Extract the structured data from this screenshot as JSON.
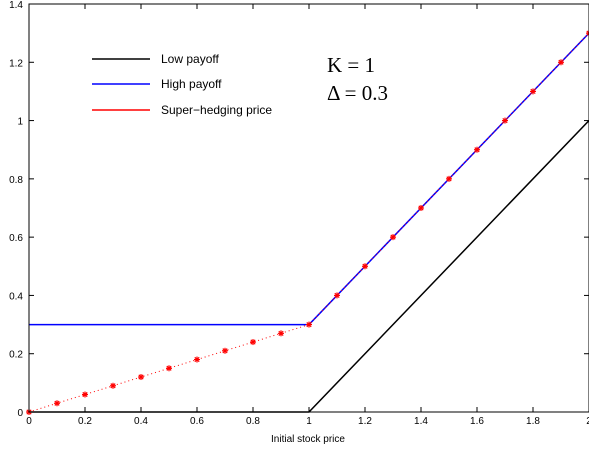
{
  "chart_data": {
    "type": "line",
    "xlabel": "Initial stock price",
    "ylabel": "",
    "xlim": [
      0,
      2
    ],
    "ylim": [
      0,
      1.4
    ],
    "xticks": [
      0,
      0.2,
      0.4,
      0.6,
      0.8,
      1,
      1.2,
      1.4,
      1.6,
      1.8,
      2
    ],
    "xtick_labels": [
      "0",
      "0.2",
      "0.4",
      "0.6",
      "0.8",
      "1",
      "1.2",
      "1.4",
      "1.6",
      "1.8",
      "2"
    ],
    "yticks": [
      0,
      0.2,
      0.4,
      0.6,
      0.8,
      1,
      1.2,
      1.4
    ],
    "ytick_labels": [
      "0",
      "0.2",
      "0.4",
      "0.6",
      "0.8",
      "1",
      "1.2",
      "1.4"
    ],
    "grid": false,
    "legend_position": "top-left",
    "annotations": [
      "K = 1",
      "Δ = 0.3"
    ],
    "series": [
      {
        "name": "Low payoff",
        "color": "#000000",
        "style": "solid",
        "x": [
          0,
          1,
          2
        ],
        "y": [
          0,
          0,
          1
        ]
      },
      {
        "name": "High payoff",
        "color": "#0000ff",
        "style": "solid",
        "x": [
          0,
          1,
          2
        ],
        "y": [
          0.3,
          0.3,
          1.3
        ]
      },
      {
        "name": "Super−hedging price",
        "color": "#ff0000",
        "style": "dotted-star",
        "x": [
          0,
          0.1,
          0.2,
          0.3,
          0.4,
          0.5,
          0.6,
          0.7,
          0.8,
          0.9,
          1.0,
          1.1,
          1.2,
          1.3,
          1.4,
          1.5,
          1.6,
          1.7,
          1.8,
          1.9,
          2.0
        ],
        "y": [
          0,
          0.03,
          0.06,
          0.09,
          0.12,
          0.15,
          0.18,
          0.21,
          0.24,
          0.27,
          0.3,
          0.4,
          0.5,
          0.6,
          0.7,
          0.8,
          0.9,
          1.0,
          1.1,
          1.2,
          1.3
        ]
      }
    ]
  }
}
